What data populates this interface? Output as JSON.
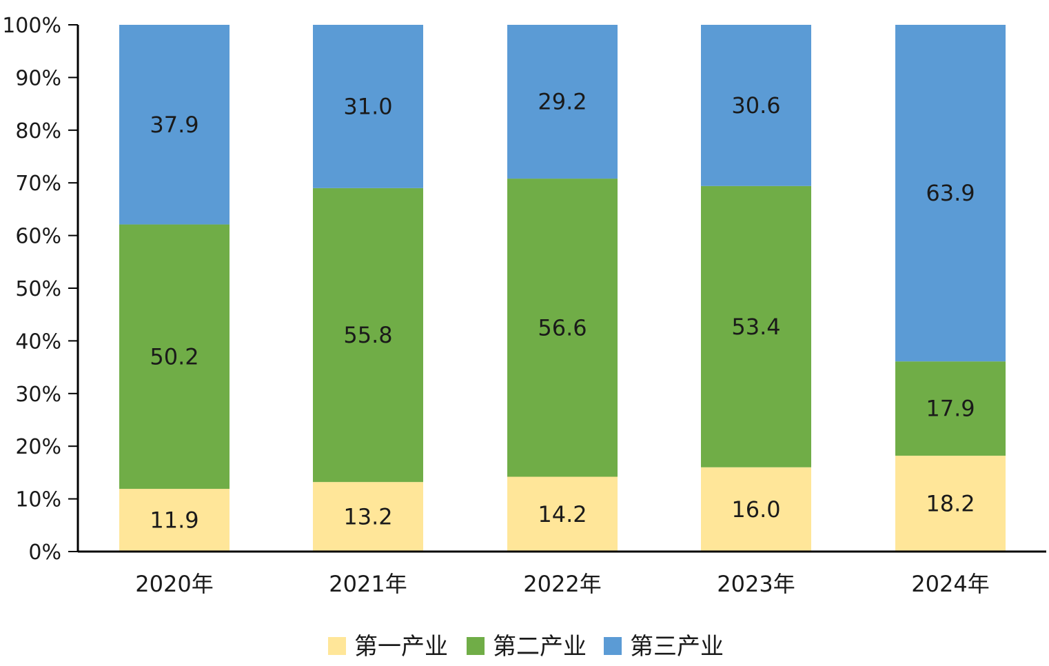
{
  "chart_data": {
    "type": "bar",
    "stacked": true,
    "percent_stacked": true,
    "categories": [
      "2020年",
      "2021年",
      "2022年",
      "2023年",
      "2024年"
    ],
    "series": [
      {
        "name": "第一产业",
        "values": [
          11.9,
          13.2,
          14.2,
          16.0,
          18.2
        ],
        "labels": [
          "11.9",
          "13.2",
          "14.2",
          "16.0",
          "18.2"
        ],
        "color": "#FFE699"
      },
      {
        "name": "第二产业",
        "values": [
          50.2,
          55.8,
          56.6,
          53.4,
          17.9
        ],
        "labels": [
          "50.2",
          "55.8",
          "56.6",
          "53.4",
          "17.9"
        ],
        "color": "#70AD47"
      },
      {
        "name": "第三产业",
        "values": [
          37.9,
          31.0,
          29.2,
          30.6,
          63.9
        ],
        "labels": [
          "37.9",
          "31.0",
          "29.2",
          "30.6",
          "63.9"
        ],
        "color": "#5B9BD5"
      }
    ],
    "y_ticks": [
      "0%",
      "10%",
      "20%",
      "30%",
      "40%",
      "50%",
      "60%",
      "70%",
      "80%",
      "90%",
      "100%"
    ],
    "ylim": [
      0,
      100
    ],
    "grid": false,
    "legend_position": "bottom",
    "title": "",
    "xlabel": "",
    "ylabel": ""
  }
}
